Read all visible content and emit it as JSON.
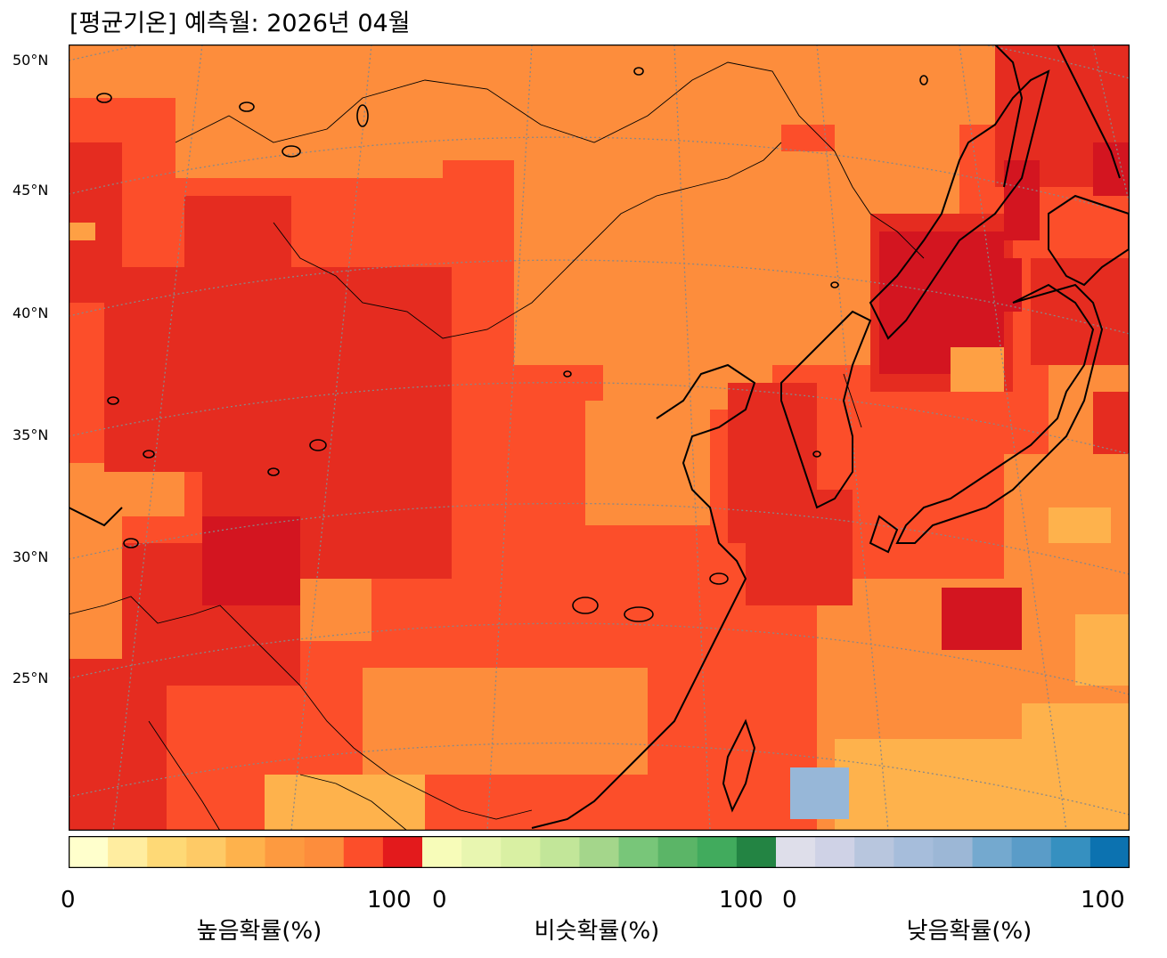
{
  "title": "[평균기온] 예측월: 2026년 04월",
  "lat_labels": [
    "50°N",
    "45°N",
    "40°N",
    "35°N",
    "30°N",
    "25°N"
  ],
  "legend": {
    "high": {
      "name": "높음확률(%)",
      "min": "0",
      "max": "100",
      "colors": [
        "#ffffcc",
        "#ffeda0",
        "#fed976",
        "#feca66",
        "#feb24c",
        "#fd9a40",
        "#fd8d3c",
        "#fc4e2a",
        "#e31a1c"
      ]
    },
    "normal": {
      "name": "비슷확률(%)",
      "min": "0",
      "max": "100",
      "colors": [
        "#f7fcb9",
        "#e8f6b0",
        "#d9f0a3",
        "#c2e699",
        "#a4d68b",
        "#78c679",
        "#5bb567",
        "#41ab5d",
        "#238443"
      ]
    },
    "low": {
      "name": "낮음확률(%)",
      "min": "0",
      "max": "100",
      "colors": [
        "#dedeea",
        "#cfd2e6",
        "#b8c6de",
        "#a6bddb",
        "#9cb7d6",
        "#74a9cf",
        "#5a9cc8",
        "#3690c0",
        "#0c72b0"
      ]
    }
  },
  "map_palette": {
    "orange": "#fd8d3c",
    "red_orange": "#fc4e2a",
    "red": "#e52c20",
    "deep_red": "#d31520",
    "light_orange": "#fea044",
    "pale_orange": "#feb24c",
    "blue": "#97b7d8"
  }
}
